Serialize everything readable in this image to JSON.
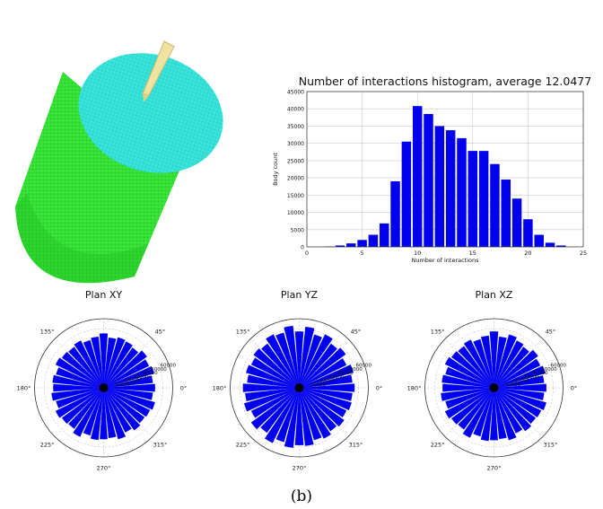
{
  "colors": {
    "cylinder_side": "#33e033",
    "cylinder_top": "#33e0d8",
    "tool": "#f0e2a0",
    "bar": "#0000ee",
    "grid": "#cccccc"
  },
  "caption": "(b)",
  "chart_data": [
    {
      "type": "bar",
      "title": "Number of interactions histogram, average 12.0477",
      "xlabel": "Number of interactions",
      "ylabel": "Body count",
      "xlim": [
        0,
        25
      ],
      "ylim": [
        0,
        45000
      ],
      "xticks": [
        0,
        5,
        10,
        15,
        20,
        25
      ],
      "yticks": [
        0,
        5000,
        10000,
        15000,
        20000,
        25000,
        30000,
        35000,
        40000,
        45000
      ],
      "grid": true,
      "x": [
        2,
        3,
        4,
        5,
        6,
        7,
        8,
        9,
        10,
        11,
        12,
        13,
        14,
        15,
        16,
        17,
        18,
        19,
        20,
        21,
        22,
        23
      ],
      "values": [
        100,
        400,
        1000,
        2000,
        3500,
        6800,
        19000,
        30500,
        40800,
        38500,
        35000,
        33800,
        31500,
        27800,
        27800,
        24000,
        19500,
        14000,
        8000,
        3500,
        1200,
        400
      ]
    },
    {
      "type": "polar_bar",
      "title": "Plan XY",
      "angle_labels": [
        "0°",
        "45°",
        "135°",
        "180°",
        "225°",
        "270°",
        "315°"
      ],
      "radial_ticks": [
        "10000",
        "20000",
        "30000",
        "40000",
        "50000",
        "60000"
      ],
      "rmax": 70000,
      "bin_count": 36,
      "values": [
        52000,
        50000,
        53000,
        51000,
        54000,
        50000,
        52000,
        53000,
        51000,
        55000,
        52000,
        50000,
        53000,
        51000,
        52000,
        54000,
        50000,
        52000,
        51000,
        53000,
        50000,
        54000,
        52000,
        51000,
        55000,
        50000,
        53000,
        52000,
        51000,
        54000,
        50000,
        53000,
        51000,
        52000,
        54000,
        50000
      ]
    },
    {
      "type": "polar_bar",
      "title": "Plan YZ",
      "angle_labels": [
        "0°",
        "45°",
        "135°",
        "180°",
        "225°",
        "270°",
        "315°"
      ],
      "radial_ticks": [
        "10000",
        "20000",
        "30000",
        "40000",
        "50000",
        "60000"
      ],
      "rmax": 70000,
      "bin_count": 36,
      "values": [
        56000,
        54000,
        57000,
        53000,
        58000,
        55000,
        60000,
        56000,
        62000,
        57000,
        63000,
        58000,
        60000,
        55000,
        57000,
        54000,
        56000,
        53000,
        57000,
        55000,
        58000,
        54000,
        60000,
        56000,
        62000,
        57000,
        61000,
        58000,
        59000,
        55000,
        57000,
        54000,
        56000,
        53000,
        55000,
        54000
      ]
    },
    {
      "type": "polar_bar",
      "title": "Plan XZ",
      "angle_labels": [
        "0°",
        "45°",
        "135°",
        "180°",
        "225°",
        "270°",
        "315°"
      ],
      "radial_ticks": [
        "10000",
        "20000",
        "30000",
        "40000",
        "50000",
        "60000"
      ],
      "rmax": 70000,
      "bin_count": 36,
      "values": [
        53000,
        51000,
        54000,
        52000,
        55000,
        51000,
        53000,
        56000,
        52000,
        57000,
        53000,
        51000,
        54000,
        52000,
        53000,
        55000,
        51000,
        53000,
        52000,
        54000,
        51000,
        55000,
        53000,
        52000,
        56000,
        51000,
        54000,
        53000,
        52000,
        55000,
        51000,
        54000,
        52000,
        53000,
        55000,
        51000
      ]
    }
  ]
}
